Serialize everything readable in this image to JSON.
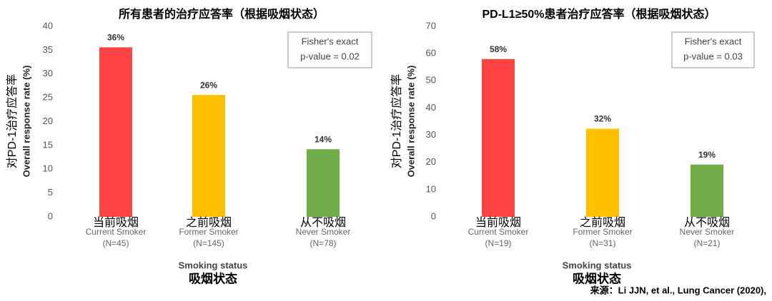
{
  "chart_data": [
    {
      "type": "bar",
      "title": "所有患者的治疗应答率（根据吸烟状态）",
      "ylabel": [
        "对PD-1治疗应答率",
        "Overall response rate (%)"
      ],
      "xlabel": [
        "Smoking status",
        "吸烟状态"
      ],
      "categories_zh": [
        "当前吸烟",
        "之前吸烟",
        "从不吸烟"
      ],
      "categories": [
        "Current Smoker",
        "Former Smoker",
        "Never Smoker"
      ],
      "category_counts": [
        "(N=45)",
        "(N=145)",
        "(N=78)"
      ],
      "values": [
        35.6,
        25.6,
        14.2
      ],
      "value_labels": [
        "36%",
        "26%",
        "14%"
      ],
      "colors": [
        "#ff4343",
        "#ffc000",
        "#70ad47"
      ],
      "ylim": [
        0,
        40
      ],
      "yticks": [
        0,
        5,
        10,
        15,
        20,
        25,
        30,
        35,
        40
      ],
      "annotation": [
        "Fisher's exact",
        "p-value = 0.02"
      ]
    },
    {
      "type": "bar",
      "title": "PD-L1≥50%患者治疗应答率（根据吸烟状态）",
      "ylabel": [
        "对PD-1治疗应答率",
        "Overall response rate (%)"
      ],
      "xlabel": [
        "Smoking status",
        "吸烟状态"
      ],
      "categories_zh": [
        "当前吸烟",
        "之前吸烟",
        "从不吸烟"
      ],
      "categories": [
        "Current Smoker",
        "Former Smoker",
        "Never Smoker"
      ],
      "category_counts": [
        "(N=19)",
        "(N=31)",
        "(N=21)"
      ],
      "values": [
        58,
        32.4,
        19.2
      ],
      "value_labels": [
        "58%",
        "32%",
        "19%"
      ],
      "colors": [
        "#ff4343",
        "#ffc000",
        "#70ad47"
      ],
      "ylim": [
        0,
        70
      ],
      "yticks": [
        0,
        10,
        20,
        30,
        40,
        50,
        60,
        70
      ],
      "annotation": [
        "Fisher's exact",
        "p-value = 0.03"
      ]
    }
  ],
  "source": "来源：Li JJN, et al., Lung Cancer (2020),"
}
